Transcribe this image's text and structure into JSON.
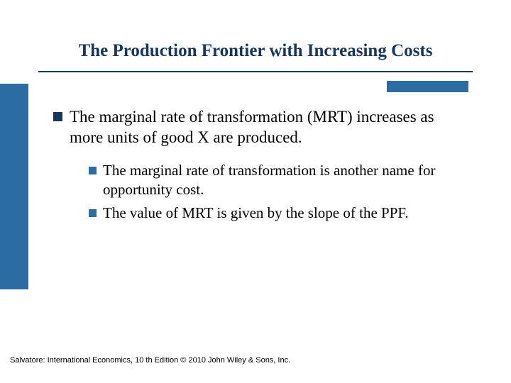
{
  "colors": {
    "title_color": "#17365d",
    "sidebar_color": "#2b6ca3",
    "accent_color": "#2b6ca3",
    "l1_bullet_color": "#17365d",
    "l2_bullet_color": "#2b6ca3",
    "background": "#ffffff",
    "body_text": "#000000"
  },
  "typography": {
    "title_fontsize": 25,
    "l1_fontsize": 23,
    "l2_fontsize": 21,
    "footer_fontsize": 11
  },
  "title": "The Production Frontier with Increasing Costs",
  "bullets": {
    "l1": {
      "text": "The marginal rate of transformation (MRT) increases as more units of good X are produced."
    },
    "l2a": {
      "text": "The marginal rate of transformation is another name for opportunity cost."
    },
    "l2b": {
      "text": "The value of MRT is given by the slope of the PPF."
    }
  },
  "footer": "Salvatore: International Economics, 10 th Edition  © 2010 John Wiley & Sons, Inc."
}
